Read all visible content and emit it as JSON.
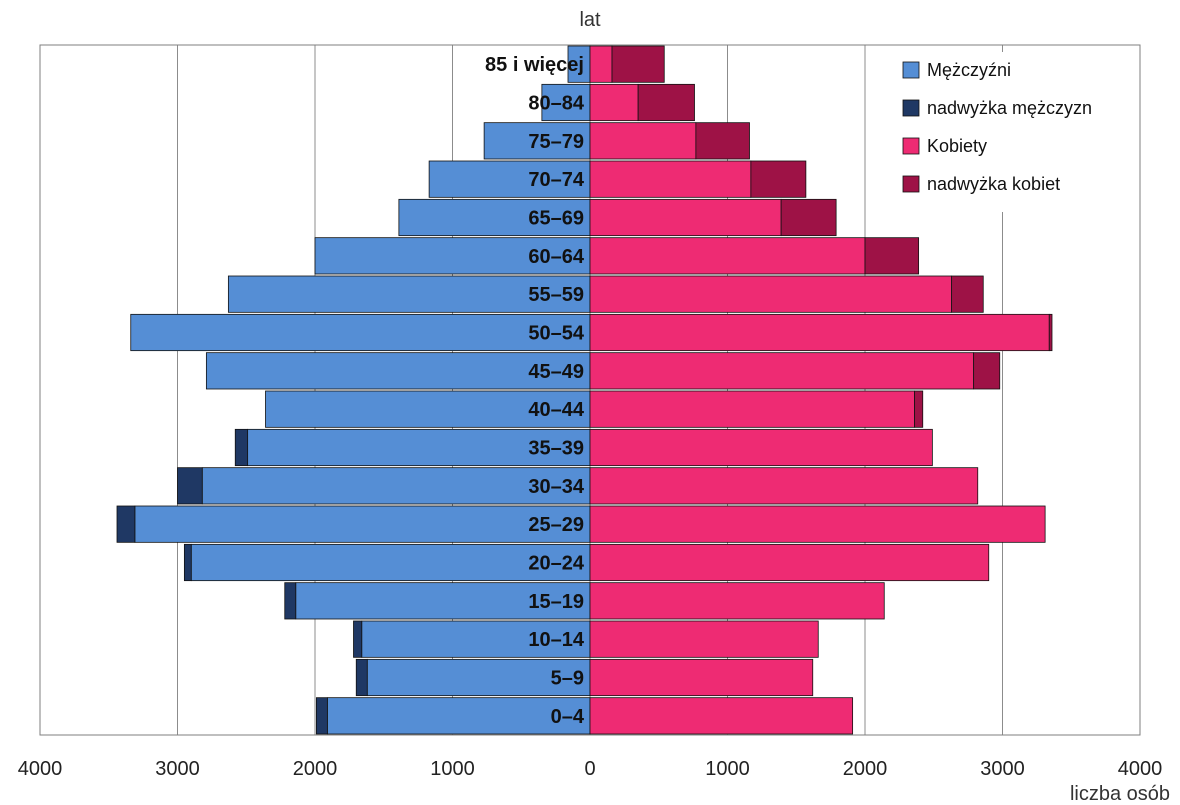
{
  "chart_data": {
    "type": "bar",
    "orientation": "horizontal-diverging",
    "ylabel": "lat",
    "xlabel": "liczba osób",
    "xlim": [
      -4000,
      4000
    ],
    "x_ticks": [
      "4000",
      "3000",
      "2000",
      "1000",
      "0",
      "1000",
      "2000",
      "3000",
      "4000"
    ],
    "x_tick_values": [
      -4000,
      -3000,
      -2000,
      -1000,
      0,
      1000,
      2000,
      3000,
      4000
    ],
    "grid": "vertical",
    "legend_position": "top-right",
    "categories": [
      "85 i więcej",
      "80–84",
      "75–79",
      "70–74",
      "65–69",
      "60–64",
      "55–59",
      "50–54",
      "45–49",
      "40–44",
      "35–39",
      "30–34",
      "25–29",
      "20–24",
      "15–19",
      "10–14",
      "5–9",
      "0–4"
    ],
    "series": [
      {
        "name": "Mężczyźni",
        "side": "left",
        "color": "#558ED5",
        "values": [
          160,
          350,
          770,
          1170,
          1390,
          2000,
          2630,
          3340,
          2790,
          2360,
          2490,
          2820,
          3310,
          2900,
          2140,
          1660,
          1620,
          1910
        ]
      },
      {
        "name": "nadwyżka mężczyzn",
        "side": "left",
        "color": "#1F3864",
        "values": [
          0,
          0,
          0,
          0,
          0,
          0,
          0,
          0,
          0,
          0,
          90,
          180,
          130,
          50,
          80,
          60,
          80,
          80
        ]
      },
      {
        "name": "Kobiety",
        "side": "right",
        "color": "#EE2B73",
        "values": [
          160,
          350,
          770,
          1170,
          1390,
          2000,
          2630,
          3340,
          2790,
          2360,
          2490,
          2820,
          3310,
          2900,
          2140,
          1660,
          1620,
          1910
        ]
      },
      {
        "name": "nadwyżka kobiet",
        "side": "right",
        "color": "#9E1246",
        "values": [
          380,
          410,
          390,
          400,
          400,
          390,
          230,
          20,
          190,
          60,
          0,
          0,
          0,
          0,
          0,
          0,
          0,
          0
        ]
      }
    ]
  }
}
